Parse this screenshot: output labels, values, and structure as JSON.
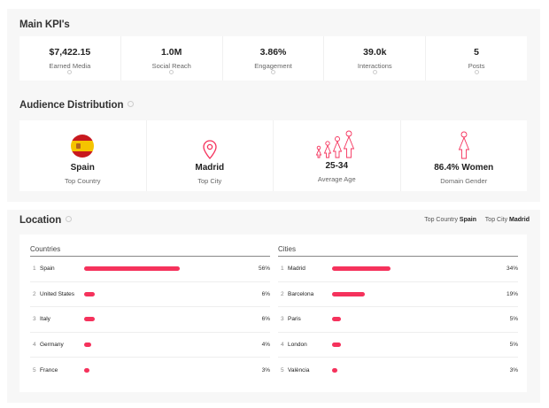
{
  "main_kpis": {
    "title": "Main KPI's",
    "items": [
      {
        "value": "$7,422.15",
        "label": "Earned Media"
      },
      {
        "value": "1.0M",
        "label": "Social Reach"
      },
      {
        "value": "3.86%",
        "label": "Engagement"
      },
      {
        "value": "39.0k",
        "label": "Interactions"
      },
      {
        "value": "5",
        "label": "Posts"
      }
    ]
  },
  "audience": {
    "title": "Audience Distribution",
    "items": [
      {
        "icon": "spain-flag-icon",
        "value": "Spain",
        "label": "Top Country"
      },
      {
        "icon": "map-pin-icon",
        "value": "Madrid",
        "label": "Top City"
      },
      {
        "icon": "age-group-icon",
        "value": "25-34",
        "label": "Average Age"
      },
      {
        "icon": "female-icon",
        "value": "86.4% Women",
        "label": "Domain Gender"
      }
    ]
  },
  "location": {
    "title": "Location",
    "top_country_label": "Top Country",
    "top_country": "Spain",
    "top_city_label": "Top City",
    "top_city": "Madrid",
    "accent_color": "#f5325c",
    "countries": {
      "header": "Countries",
      "rows": [
        {
          "rank": "1",
          "name": "Spain",
          "percent": 56,
          "label": "56%"
        },
        {
          "rank": "2",
          "name": "United States",
          "percent": 6,
          "label": "6%"
        },
        {
          "rank": "3",
          "name": "Italy",
          "percent": 6,
          "label": "6%"
        },
        {
          "rank": "4",
          "name": "Germany",
          "percent": 4,
          "label": "4%"
        },
        {
          "rank": "5",
          "name": "France",
          "percent": 3,
          "label": "3%"
        }
      ]
    },
    "cities": {
      "header": "Cities",
      "rows": [
        {
          "rank": "1",
          "name": "Madrid",
          "percent": 34,
          "label": "34%"
        },
        {
          "rank": "2",
          "name": "Barcelona",
          "percent": 19,
          "label": "19%"
        },
        {
          "rank": "3",
          "name": "Paris",
          "percent": 5,
          "label": "5%"
        },
        {
          "rank": "4",
          "name": "London",
          "percent": 5,
          "label": "5%"
        },
        {
          "rank": "5",
          "name": "València",
          "percent": 3,
          "label": "3%"
        }
      ]
    }
  }
}
